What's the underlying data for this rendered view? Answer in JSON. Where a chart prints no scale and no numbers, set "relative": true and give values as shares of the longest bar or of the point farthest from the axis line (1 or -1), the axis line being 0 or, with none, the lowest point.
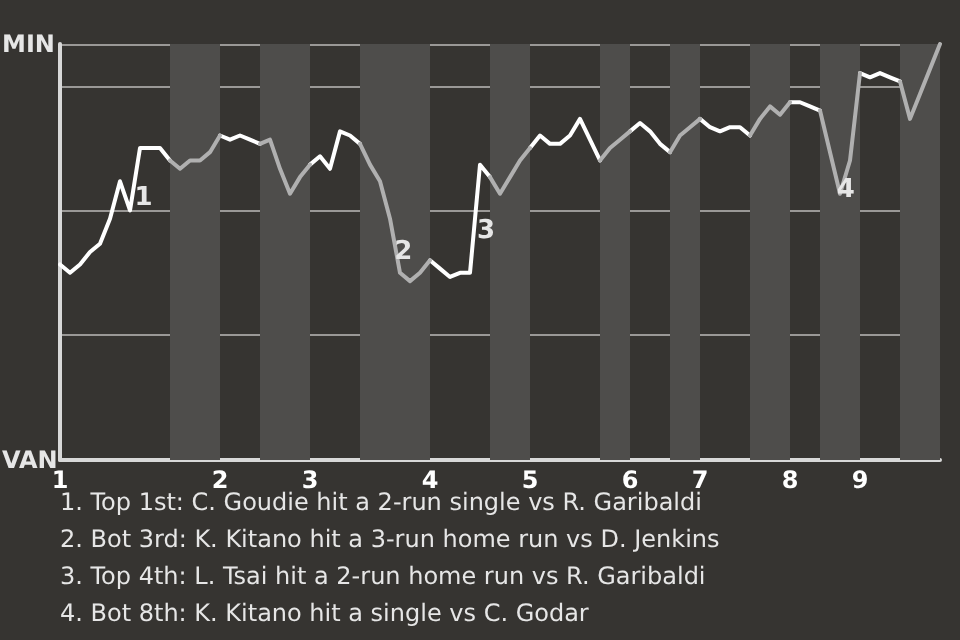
{
  "chart_data": {
    "type": "line",
    "relative": true,
    "grid": "y",
    "marker": "none",
    "line_style": "solid",
    "categories": [
      "1",
      null,
      null,
      null,
      null,
      null,
      null,
      null,
      null,
      null,
      null,
      null,
      null,
      null,
      null,
      null,
      "2",
      null,
      null,
      null,
      null,
      null,
      null,
      null,
      null,
      "3",
      null,
      null,
      null,
      null,
      null,
      null,
      null,
      null,
      null,
      null,
      null,
      "4",
      null,
      null,
      null,
      null,
      null,
      null,
      null,
      null,
      null,
      "5",
      null,
      null,
      null,
      null,
      null,
      null,
      null,
      null,
      null,
      "6",
      null,
      null,
      null,
      null,
      null,
      null,
      "7",
      null,
      null,
      null,
      null,
      null,
      null,
      null,
      null,
      "8",
      null,
      null,
      null,
      null,
      null,
      null,
      "9",
      null,
      null,
      null,
      null,
      null,
      null,
      null,
      null
    ],
    "series": [
      {
        "color": "#ffffff",
        "values": [
          0.47,
          0.45,
          0.47,
          0.5,
          0.52,
          0.58,
          0.67,
          0.6,
          0.75,
          0.75,
          0.75,
          0.72,
          null,
          null,
          null,
          null,
          0.78,
          0.77,
          0.78,
          0.77,
          0.76,
          null,
          null,
          null,
          null,
          0.71,
          0.73,
          0.7,
          0.79,
          0.78,
          0.76,
          null,
          null,
          null,
          null,
          null,
          null,
          0.48,
          0.46,
          0.44,
          0.45,
          0.45,
          0.71,
          0.68,
          null,
          null,
          null,
          0.75,
          0.78,
          0.76,
          0.76,
          0.78,
          0.82,
          0.77,
          0.72,
          null,
          null,
          0.79,
          0.81,
          0.79,
          0.76,
          0.74,
          null,
          null,
          0.82,
          0.8,
          0.79,
          0.8,
          0.8,
          0.78,
          null,
          null,
          null,
          0.86,
          0.86,
          0.85,
          0.84,
          null,
          null,
          null,
          0.93,
          0.92,
          0.93,
          0.92,
          0.91,
          null,
          null,
          null,
          null
        ]
      },
      {
        "color": "#b0b0b0",
        "values": [
          null,
          null,
          null,
          null,
          null,
          null,
          null,
          null,
          null,
          null,
          null,
          0.72,
          0.7,
          0.72,
          0.72,
          0.74,
          0.78,
          null,
          null,
          null,
          0.76,
          0.77,
          0.7,
          0.64,
          0.68,
          0.71,
          null,
          null,
          null,
          null,
          0.76,
          0.71,
          0.67,
          0.58,
          0.45,
          0.43,
          0.45,
          0.48,
          null,
          null,
          null,
          null,
          null,
          0.68,
          0.64,
          0.68,
          0.72,
          0.75,
          null,
          null,
          null,
          null,
          null,
          null,
          0.72,
          0.75,
          0.77,
          0.79,
          null,
          null,
          null,
          0.74,
          0.78,
          0.8,
          0.82,
          null,
          null,
          null,
          null,
          0.78,
          0.82,
          0.85,
          0.83,
          0.86,
          null,
          null,
          0.84,
          0.74,
          0.64,
          0.72,
          0.93,
          null,
          null,
          null,
          0.91,
          0.82,
          0.88,
          0.94,
          1
        ]
      }
    ],
    "annotations": [
      "MIN",
      "VAN",
      "1",
      "2",
      "3",
      "4",
      "1. Top 1st: C. Goudie hit a 2-run single vs R. Garibaldi",
      "2. Bot 3rd: K. Kitano hit a 3-run home run vs D. Jenkins",
      "3. Top 4th: L. Tsai hit a 2-run home run vs R. Garibaldi",
      "4. Bot 8th: K. Kitano hit a single vs C. Godar"
    ]
  }
}
